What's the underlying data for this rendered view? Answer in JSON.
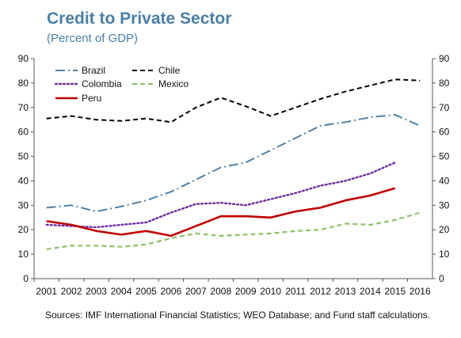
{
  "title": "Credit to Private Sector",
  "subtitle": "(Percent of GDP)",
  "source": "Sources: IMF International Financial Statistics;  WEO Database; and Fund staff calculations.",
  "chart_data": {
    "type": "line",
    "x": [
      "2001",
      "2002",
      "2003",
      "2004",
      "2005",
      "2006",
      "2007",
      "2008",
      "2009",
      "2010",
      "2011",
      "2012",
      "2013",
      "2014",
      "2015",
      "2016"
    ],
    "ylim": [
      0,
      90
    ],
    "yticks": [
      0,
      10,
      20,
      30,
      40,
      50,
      60,
      70,
      80,
      90
    ],
    "secondary_y_axis": true,
    "grid": false,
    "legend_position": "top-left",
    "series": [
      {
        "name": "Brazil",
        "color": "#4f81a8",
        "style": "dash-dot",
        "values": [
          29,
          30,
          27.5,
          29.5,
          32,
          35.5,
          40.5,
          45.5,
          47.5,
          52.5,
          57.5,
          62.5,
          64,
          66,
          67,
          62.5
        ]
      },
      {
        "name": "Chile",
        "color": "#000000",
        "style": "dashed",
        "values": [
          65.5,
          66.5,
          65,
          64.5,
          65.5,
          64,
          70,
          74,
          70.5,
          66.5,
          70,
          73.5,
          76.5,
          79,
          81.5,
          81
        ]
      },
      {
        "name": "Colombia",
        "color": "#7030a0",
        "style": "dotted",
        "values": [
          22,
          21.5,
          21,
          22,
          23,
          27,
          30.5,
          31,
          30,
          32.5,
          35,
          38,
          40,
          43,
          47.5,
          null
        ]
      },
      {
        "name": "Mexico",
        "color": "#8fbf6a",
        "style": "dashed",
        "values": [
          12,
          13.5,
          13.5,
          13,
          14,
          16.5,
          18.5,
          17.5,
          18,
          18.5,
          19.5,
          20,
          22.5,
          22,
          24,
          27
        ]
      },
      {
        "name": "Peru",
        "color": "#c00000",
        "style": "solid",
        "values": [
          23.5,
          22,
          19.5,
          18,
          19.5,
          17.5,
          21.5,
          25.5,
          25.5,
          25,
          27.5,
          29,
          32,
          34,
          37,
          null
        ]
      }
    ]
  }
}
